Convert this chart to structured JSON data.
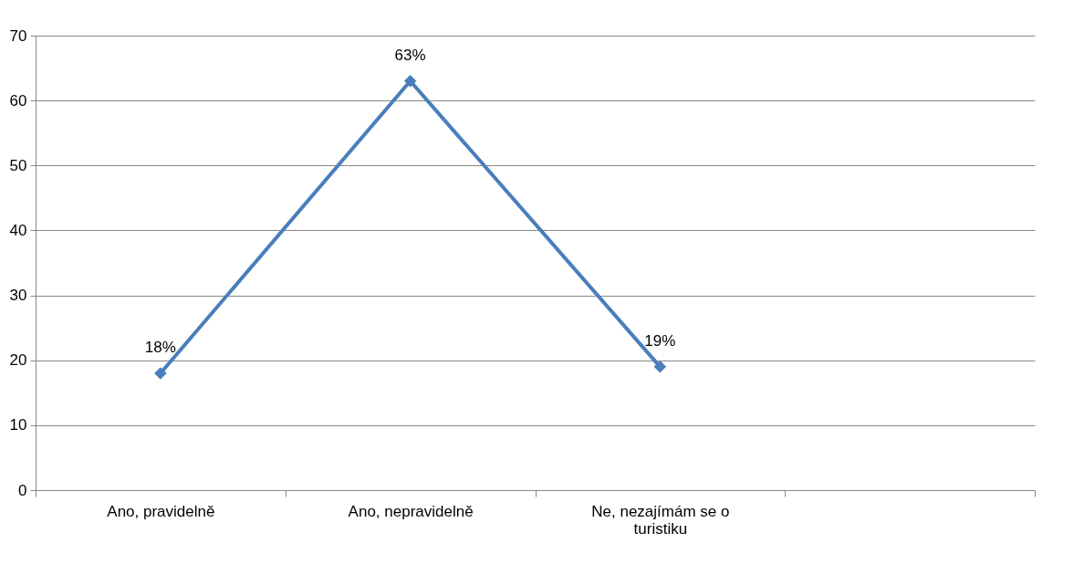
{
  "chart_data": {
    "type": "line",
    "categories": [
      "Ano, pravidelně",
      "Ano, nepravidelně",
      "Ne, nezajímám se o turistiku",
      null
    ],
    "series": [
      {
        "color": "#4a7ebb",
        "values": [
          18,
          63,
          19,
          null
        ],
        "value_labels": [
          "18%",
          "63%",
          "19%",
          null
        ]
      }
    ],
    "ylim": [
      0,
      70
    ],
    "yticks": [
      0,
      10,
      20,
      30,
      40,
      50,
      60,
      70
    ],
    "grid": "y",
    "marker": "diamond",
    "line_style": "solid"
  }
}
